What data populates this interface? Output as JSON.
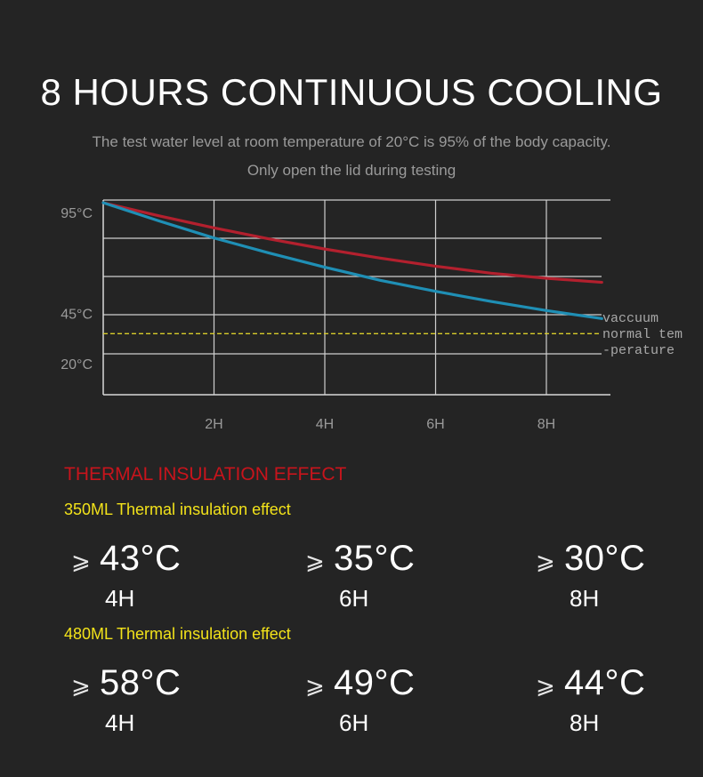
{
  "title": "8 HOURS CONTINUOUS COOLING",
  "subtitle_line1": "The test water level at room temperature of 20°C is 95% of the body capacity.",
  "subtitle_line2": "Only open the lid during testing",
  "chart_data": {
    "type": "line",
    "x": [
      0,
      1,
      2,
      3,
      4,
      5,
      6,
      7,
      8,
      9
    ],
    "x_tick_labels": [
      {
        "x": 2,
        "label": "2H"
      },
      {
        "x": 4,
        "label": "4H"
      },
      {
        "x": 6,
        "label": "6H"
      },
      {
        "x": 8,
        "label": "8H"
      }
    ],
    "y_tick_labels": [
      {
        "y": 95,
        "label": "95°C"
      },
      {
        "y": 45,
        "label": "45°C"
      },
      {
        "y": 20,
        "label": "20°C"
      }
    ],
    "ylim": [
      0,
      95
    ],
    "xlim": [
      0,
      9.1
    ],
    "series": [
      {
        "name": "",
        "color": "#b3202e",
        "y": [
          95,
          88.5,
          82.5,
          77,
          72,
          67.5,
          63.5,
          60,
          57.5,
          55.5
        ]
      },
      {
        "name": "",
        "color": "#1f8fb5",
        "y": [
          95,
          86,
          77.5,
          70,
          63,
          56.5,
          51,
          46,
          41.5,
          37.5
        ]
      }
    ],
    "reference_line": {
      "y": 30,
      "color": "#d8cc2a",
      "style": "dashed"
    },
    "annotations": [
      "vaccuum",
      "normal tem",
      "-perature"
    ],
    "grid": true
  },
  "insulation": {
    "heading": "THERMAL INSULATION EFFECT",
    "arrow_glyph": "⩾",
    "groups": [
      {
        "label": "350ML Thermal insulation effect",
        "items": [
          {
            "temp": "43°C",
            "hour": "4H"
          },
          {
            "temp": "35°C",
            "hour": "6H"
          },
          {
            "temp": "30°C",
            "hour": "8H"
          }
        ]
      },
      {
        "label": "480ML Thermal insulation effect",
        "items": [
          {
            "temp": "58°C",
            "hour": "4H"
          },
          {
            "temp": "49°C",
            "hour": "6H"
          },
          {
            "temp": "44°C",
            "hour": "8H"
          }
        ]
      }
    ]
  }
}
